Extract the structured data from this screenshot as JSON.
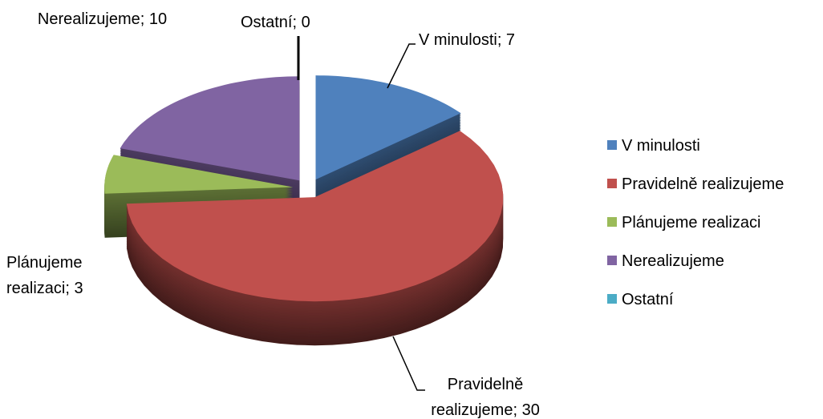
{
  "chart_data": {
    "type": "pie",
    "categories": [
      "V minulosti",
      "Pravidelně realizujeme",
      "Plánujeme realizaci",
      "Nerealizujeme",
      "Ostatní"
    ],
    "values": [
      7,
      30,
      3,
      10,
      0
    ],
    "value_labels": [
      "V minulosti; 7",
      "Pravidelně realizujeme; 30",
      "Plánujeme realizaci; 3",
      "Nerealizujeme; 10",
      "Ostatní; 0"
    ],
    "colors": [
      "#4f81bd",
      "#c0504d",
      "#9bbb59",
      "#8064a2",
      "#4bacc6"
    ],
    "legend": "right",
    "three_d": true,
    "exploded": true
  }
}
